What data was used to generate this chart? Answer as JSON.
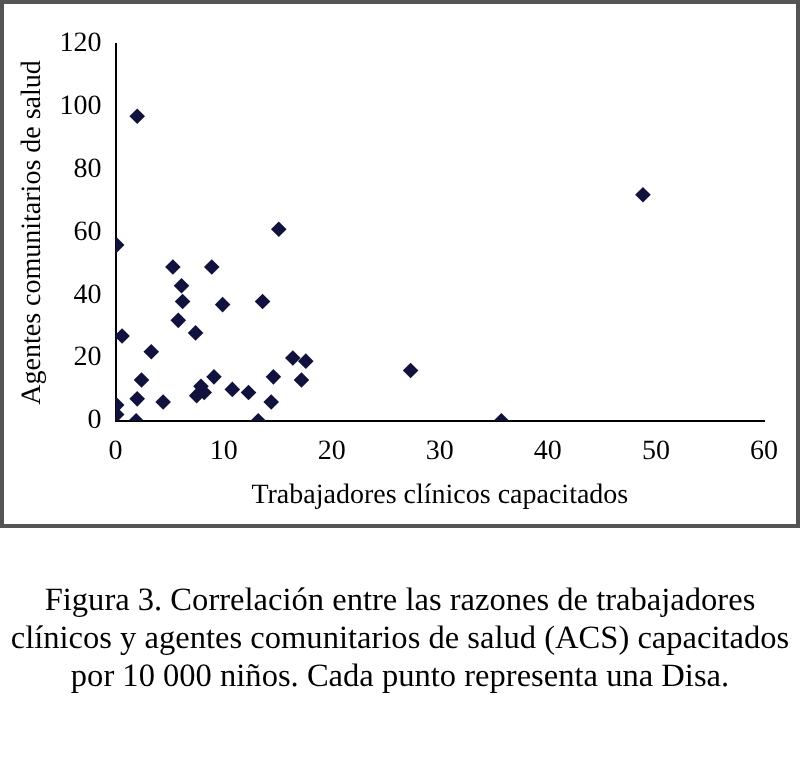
{
  "chart_data": {
    "type": "scatter",
    "xlabel": "Trabajadores clínicos capacitados",
    "ylabel": "Agentes comunitarios de salud",
    "annotations": [
      "Figura 3. Correlación entre las razones de trabajadores clínicos y agentes comunitarios de salud (ACS) capacitados por 10 000 niños. Cada punto representa una Disa."
    ],
    "series": [
      {
        "color": "#12123e",
        "x": [
          2.0,
          0.1,
          0.6,
          0.1,
          0.1,
          1.9,
          2.0,
          2.4,
          3.3,
          4.4,
          5.3,
          6.1,
          6.2,
          5.8,
          7.4,
          8.9,
          9.9,
          9.1,
          7.9,
          7.5,
          8.2,
          10.8,
          12.3,
          13.2,
          13.6,
          14.4,
          14.6,
          15.1,
          16.4,
          17.2,
          17.6,
          27.3,
          35.7,
          48.8
        ],
        "values": [
          97,
          56,
          27,
          5,
          2,
          0,
          7,
          13,
          22,
          6,
          49,
          43,
          38,
          32,
          28,
          49,
          37,
          14,
          11,
          8,
          9,
          10,
          9,
          0,
          38,
          6,
          14,
          61,
          20,
          13,
          19,
          16,
          0,
          72
        ]
      }
    ],
    "xlim": [
      0,
      60
    ],
    "xticks": [
      0,
      10,
      20,
      30,
      40,
      50,
      60
    ],
    "ylim": [
      0,
      120
    ],
    "yticks": [
      0,
      20,
      40,
      60,
      80,
      100,
      120
    ],
    "grid": false,
    "legend": false,
    "marker": "diamond"
  }
}
